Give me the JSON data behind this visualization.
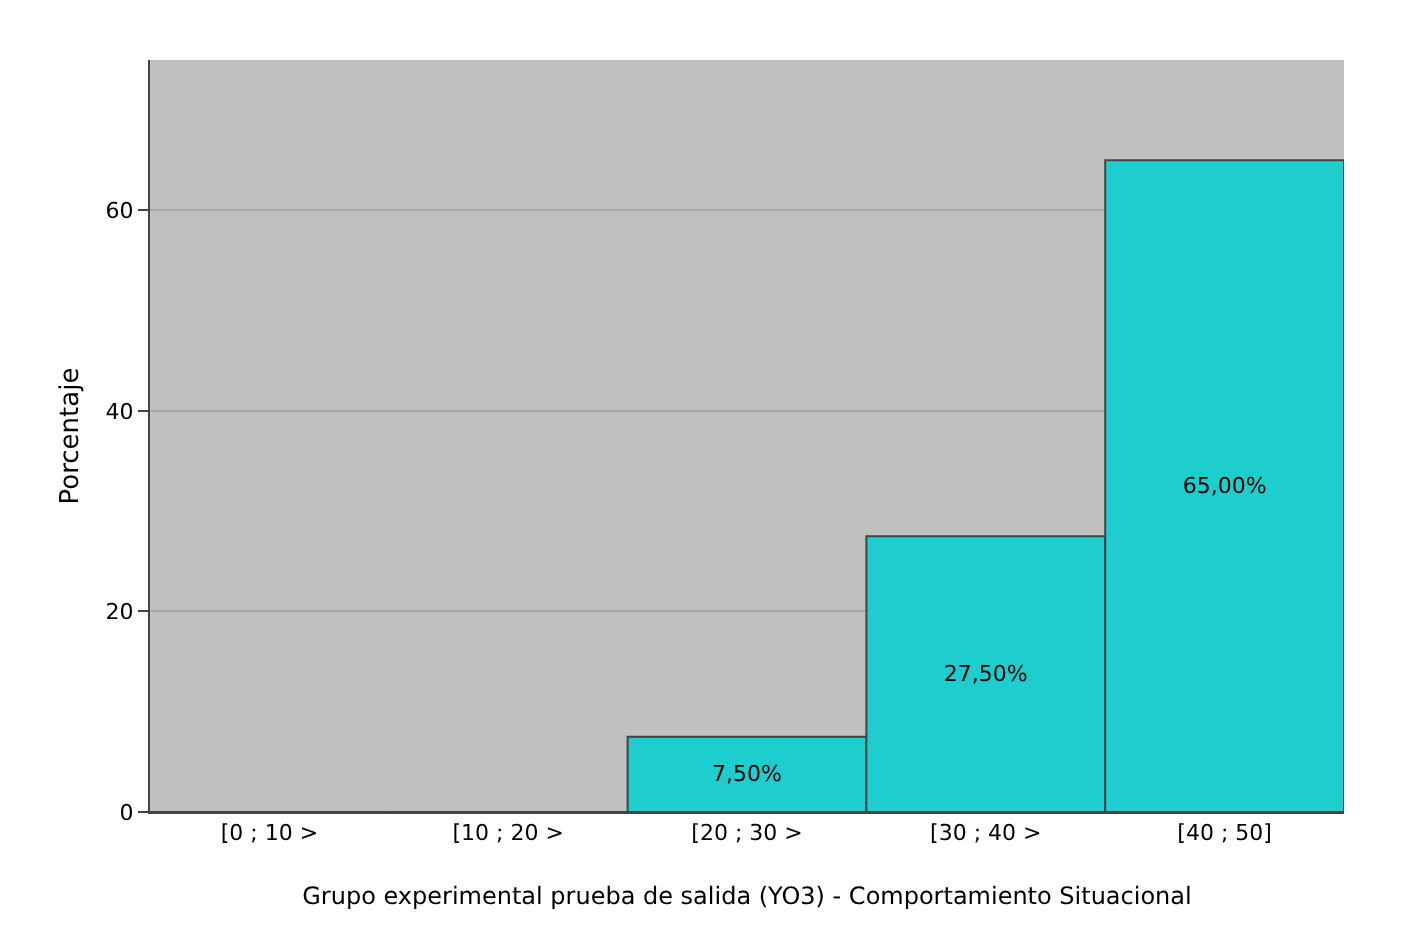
{
  "chart_data": {
    "type": "bar",
    "xlabel": "Grupo experimental prueba de salida (YO3) - Comportamiento Situacional",
    "ylabel": "Porcentaje",
    "categories": [
      "[0 ; 10 >",
      "[10 ; 20 >",
      "[20 ; 30 >",
      "[30 ; 40 >",
      "[40 ; 50]"
    ],
    "values": [
      0,
      0,
      7.5,
      27.5,
      65
    ],
    "value_labels": [
      null,
      null,
      "7,50%",
      "27,50%",
      "65,00%"
    ],
    "color": "#1ecece",
    "ylim": [
      0,
      75
    ],
    "yticks": [
      0,
      20,
      40,
      60
    ],
    "grid": "y"
  }
}
